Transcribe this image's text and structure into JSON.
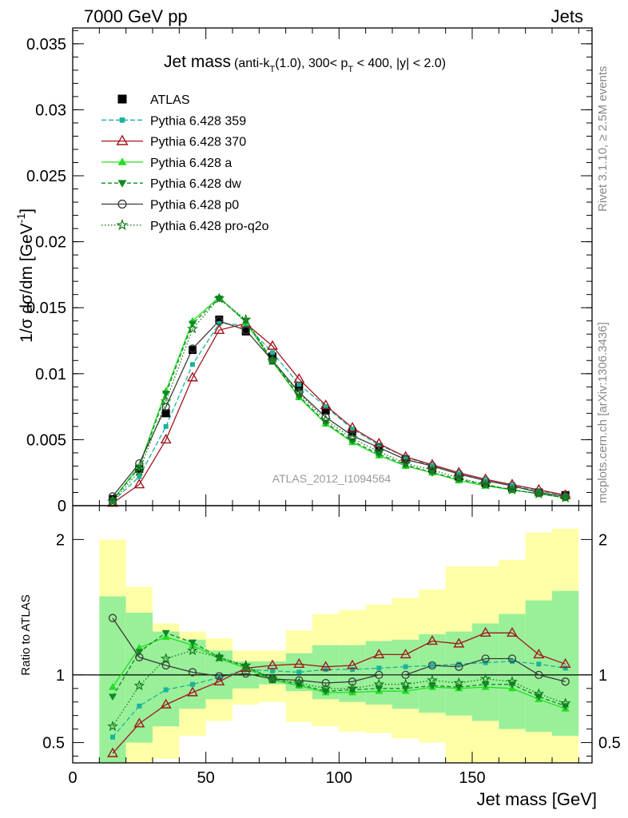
{
  "header": {
    "left": "7000 GeV pp",
    "right": "Jets"
  },
  "side_labels": {
    "rivet": "Rivet 3.1.10, ≥ 2.5M events",
    "mcplots": "mcplots.cern.ch [arXiv:1306.3436]"
  },
  "chart_data": [
    {
      "type": "line",
      "panel": "main",
      "title_main": "Jet mass",
      "title_sub_1": "(anti-k",
      "title_sub_T": "T",
      "title_sub_2": "(1.0), 300< p",
      "title_sub_pT": "T",
      "title_sub_3": " < 400, |y| < 2.0)",
      "ylabel": "1/σ dσ/dm [GeV⁻¹]",
      "ylabel_parts": {
        "main": "1/σ dσ/dm [GeV",
        "sup": "-1",
        "close": "]"
      },
      "watermark": "ATLAS_2012_I1094564",
      "xlim": [
        0,
        195
      ],
      "ylim": [
        0,
        0.0362
      ],
      "yticks": [
        0,
        0.005,
        0.01,
        0.015,
        0.02,
        0.025,
        0.03,
        0.035
      ],
      "ytick_labels": [
        "0",
        "0.005",
        "0.01",
        "0.015",
        "0.02",
        "0.025",
        "0.03",
        "0.035"
      ],
      "x": [
        15,
        25,
        35,
        45,
        55,
        65,
        75,
        85,
        95,
        105,
        115,
        125,
        135,
        145,
        155,
        165,
        175,
        185
      ],
      "legend_position": "top-left",
      "series": [
        {
          "name": "ATLAS",
          "style": "data",
          "color": "#000000",
          "values": [
            0.0005,
            0.0028,
            0.007,
            0.0118,
            0.0141,
            0.0132,
            0.0113,
            0.009,
            0.0072,
            0.0056,
            0.0044,
            0.0035,
            0.0028,
            0.0022,
            0.0017,
            0.0013,
            0.001,
            0.0008
          ]
        },
        {
          "name": "Pythia 6.428 359",
          "style": "mc",
          "color": "#1bb39b",
          "dash": "6,3",
          "marker": "square-small",
          "values": [
            0.0003,
            0.0022,
            0.006,
            0.0107,
            0.0138,
            0.0137,
            0.0116,
            0.0092,
            0.0075,
            0.0058,
            0.0046,
            0.0037,
            0.003,
            0.0024,
            0.0019,
            0.0015,
            0.0011,
            0.0008
          ]
        },
        {
          "name": "Pythia 6.428 370",
          "style": "mc",
          "color": "#a0171e",
          "dash": "",
          "marker": "triangle-open",
          "values": [
            0.0002,
            0.0016,
            0.005,
            0.0097,
            0.0133,
            0.0138,
            0.0121,
            0.0096,
            0.0076,
            0.0059,
            0.0047,
            0.0037,
            0.0031,
            0.0025,
            0.002,
            0.0016,
            0.0012,
            0.0008
          ]
        },
        {
          "name": "Pythia 6.428 a",
          "style": "mc",
          "color": "#22dd22",
          "dash": "",
          "marker": "triangle-filled",
          "values": [
            0.00045,
            0.003,
            0.0087,
            0.014,
            0.0158,
            0.0139,
            0.0109,
            0.0082,
            0.0062,
            0.0048,
            0.0038,
            0.003,
            0.0025,
            0.0019,
            0.0015,
            0.0012,
            0.0009,
            0.0006
          ]
        },
        {
          "name": "Pythia 6.428 dw",
          "style": "mc",
          "color": "#0f8a26",
          "dash": "5,3",
          "marker": "triangle-down-filled",
          "values": [
            0.0004,
            0.0029,
            0.0085,
            0.0138,
            0.0157,
            0.014,
            0.011,
            0.0083,
            0.0063,
            0.0049,
            0.0039,
            0.0031,
            0.0025,
            0.002,
            0.0016,
            0.0012,
            0.0009,
            0.0006
          ]
        },
        {
          "name": "Pythia 6.428 p0",
          "style": "mc",
          "color": "#3a3a3a",
          "dash": "",
          "marker": "circle-open",
          "values": [
            0.0007,
            0.0032,
            0.0075,
            0.0119,
            0.014,
            0.0133,
            0.011,
            0.0086,
            0.0067,
            0.0053,
            0.0044,
            0.0035,
            0.003,
            0.0024,
            0.0019,
            0.0015,
            0.001,
            0.0007
          ]
        },
        {
          "name": "Pythia 6.428 pro-q2o",
          "style": "mc",
          "color": "#137a1b",
          "dash": "1.5,2.5",
          "marker": "star",
          "values": [
            0.0003,
            0.0026,
            0.0079,
            0.0134,
            0.0157,
            0.0141,
            0.011,
            0.0085,
            0.0065,
            0.0051,
            0.0041,
            0.0032,
            0.0027,
            0.0021,
            0.0016,
            0.0012,
            0.0009,
            0.0006
          ]
        }
      ]
    },
    {
      "type": "line",
      "panel": "ratio",
      "ylabel": "Ratio to ATLAS",
      "xlabel": "Jet mass [GeV]",
      "xlim": [
        0,
        195
      ],
      "ylim": [
        0.35,
        2.25
      ],
      "xticks": [
        0,
        50,
        100,
        150
      ],
      "xtick_labels": [
        "0",
        "50",
        "100",
        "150"
      ],
      "yticks": [
        0.5,
        1,
        2
      ],
      "ytick_labels": [
        "0.5",
        "1",
        "2"
      ],
      "bins": [
        [
          10,
          20
        ],
        [
          20,
          30
        ],
        [
          30,
          40
        ],
        [
          40,
          50
        ],
        [
          50,
          60
        ],
        [
          60,
          70
        ],
        [
          70,
          80
        ],
        [
          80,
          90
        ],
        [
          90,
          100
        ],
        [
          100,
          110
        ],
        [
          110,
          120
        ],
        [
          120,
          130
        ],
        [
          130,
          140
        ],
        [
          140,
          150
        ],
        [
          150,
          160
        ],
        [
          160,
          170
        ],
        [
          170,
          180
        ],
        [
          180,
          190
        ]
      ],
      "band_yellow": {
        "lo": [
          0.35,
          0.35,
          0.38,
          0.55,
          0.66,
          0.78,
          0.8,
          0.65,
          0.62,
          0.58,
          0.57,
          0.53,
          0.5,
          0.35,
          0.35,
          0.35,
          0.35,
          0.35
        ],
        "hi": [
          2.0,
          1.65,
          1.38,
          1.32,
          1.27,
          1.18,
          1.18,
          1.33,
          1.45,
          1.48,
          1.52,
          1.57,
          1.63,
          1.8,
          1.8,
          1.85,
          2.05,
          2.08
        ]
      },
      "band_green": {
        "lo": [
          0.35,
          0.5,
          0.62,
          0.75,
          0.82,
          0.9,
          0.93,
          0.88,
          0.82,
          0.8,
          0.78,
          0.75,
          0.72,
          0.7,
          0.66,
          0.6,
          0.58,
          0.55
        ],
        "hi": [
          1.58,
          1.46,
          1.32,
          1.26,
          1.18,
          1.1,
          1.1,
          1.16,
          1.22,
          1.22,
          1.25,
          1.26,
          1.3,
          1.32,
          1.38,
          1.45,
          1.55,
          1.62
        ]
      },
      "x": [
        15,
        25,
        35,
        45,
        55,
        65,
        75,
        85,
        95,
        105,
        115,
        125,
        135,
        145,
        155,
        165,
        175,
        185
      ],
      "series": [
        {
          "name": "Pythia 6.428 359",
          "values": [
            0.54,
            0.77,
            0.89,
            0.93,
            0.98,
            1.04,
            1.03,
            1.02,
            1.04,
            1.04,
            1.05,
            1.06,
            1.07,
            1.08,
            1.09,
            1.1,
            1.08,
            1.05
          ]
        },
        {
          "name": "Pythia 6.428 370",
          "values": [
            0.42,
            0.64,
            0.78,
            0.87,
            0.95,
            1.05,
            1.07,
            1.08,
            1.06,
            1.07,
            1.15,
            1.15,
            1.25,
            1.23,
            1.31,
            1.31,
            1.15,
            1.08
          ]
        },
        {
          "name": "Pythia 6.428 a",
          "values": [
            0.91,
            1.2,
            1.28,
            1.22,
            1.12,
            1.05,
            0.96,
            0.92,
            0.87,
            0.87,
            0.88,
            0.88,
            0.91,
            0.9,
            0.91,
            0.9,
            0.82,
            0.75
          ]
        },
        {
          "name": "Pythia 6.428 dw",
          "values": [
            0.84,
            1.17,
            1.31,
            1.24,
            1.13,
            1.06,
            0.97,
            0.93,
            0.88,
            0.89,
            0.9,
            0.9,
            0.92,
            0.91,
            0.93,
            0.93,
            0.84,
            0.77
          ]
        },
        {
          "name": "Pythia 6.428 p0",
          "values": [
            1.42,
            1.13,
            1.07,
            1.02,
            0.99,
            1.01,
            0.97,
            0.96,
            0.94,
            0.95,
            1.0,
            1.0,
            1.07,
            1.06,
            1.12,
            1.12,
            1.0,
            0.95
          ]
        },
        {
          "name": "Pythia 6.428 pro-q2o",
          "values": [
            0.62,
            0.92,
            1.12,
            1.18,
            1.13,
            1.07,
            0.97,
            0.94,
            0.9,
            0.9,
            0.93,
            0.93,
            0.96,
            0.94,
            0.97,
            0.95,
            0.86,
            0.79
          ]
        }
      ]
    }
  ]
}
